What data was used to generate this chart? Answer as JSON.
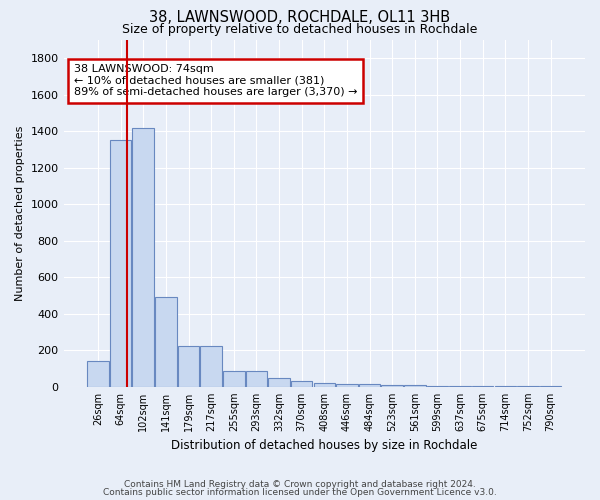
{
  "title1": "38, LAWNSWOOD, ROCHDALE, OL11 3HB",
  "title2": "Size of property relative to detached houses in Rochdale",
  "xlabel": "Distribution of detached houses by size in Rochdale",
  "ylabel": "Number of detached properties",
  "bar_labels": [
    "26sqm",
    "64sqm",
    "102sqm",
    "141sqm",
    "179sqm",
    "217sqm",
    "255sqm",
    "293sqm",
    "332sqm",
    "370sqm",
    "408sqm",
    "446sqm",
    "484sqm",
    "523sqm",
    "561sqm",
    "599sqm",
    "637sqm",
    "675sqm",
    "714sqm",
    "752sqm",
    "790sqm"
  ],
  "bar_values": [
    140,
    1350,
    1420,
    490,
    225,
    225,
    85,
    85,
    50,
    30,
    20,
    15,
    15,
    10,
    10,
    5,
    5,
    5,
    5,
    5,
    5
  ],
  "bar_color": "#c8d8f0",
  "bar_edge_color": "#6888c0",
  "red_line_x": 1.28,
  "annotation_text": "38 LAWNSWOOD: 74sqm\n← 10% of detached houses are smaller (381)\n89% of semi-detached houses are larger (3,370) →",
  "annotation_box_color": "#ffffff",
  "annotation_box_edge": "#cc0000",
  "ylim": [
    0,
    1900
  ],
  "yticks": [
    0,
    200,
    400,
    600,
    800,
    1000,
    1200,
    1400,
    1600,
    1800
  ],
  "background_color": "#e8eef8",
  "grid_color": "#ffffff",
  "footer1": "Contains HM Land Registry data © Crown copyright and database right 2024.",
  "footer2": "Contains public sector information licensed under the Open Government Licence v3.0."
}
